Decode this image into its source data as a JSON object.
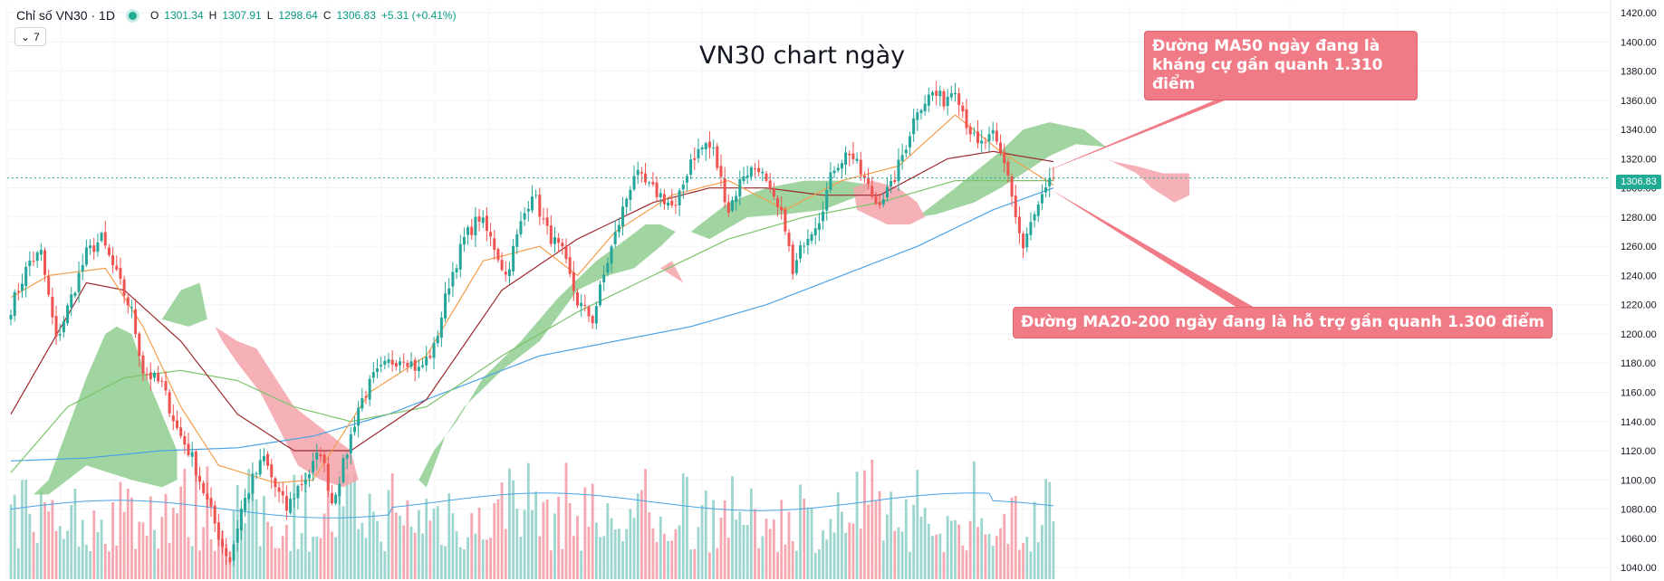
{
  "header": {
    "symbol": "Chỉ số VN30 · 1D",
    "open_label": "O",
    "open": "1301.34",
    "high_label": "H",
    "high": "1307.91",
    "low_label": "L",
    "low": "1298.64",
    "close_label": "C",
    "close": "1306.83",
    "change": "+5.31 (+0.41%)",
    "collapse_count": "7"
  },
  "price_tag": "1306.83",
  "colors": {
    "up": "#26a69a",
    "down": "#ef5350",
    "vol_up": "#9dd6cf",
    "vol_down": "#f6a8b0",
    "ma_fast": "#f59e4c",
    "ma_slow": "#9c2a2f",
    "ma_mid": "#7cc46a",
    "ma_long": "#4aa3e6",
    "cloud_bull": "#8fcd8f",
    "cloud_bear": "#f5a3aa",
    "annotation": "#f07b86"
  },
  "chart_data": {
    "type": "candlestick",
    "title": "VN30 chart ngày",
    "y_ticks": [
      1040,
      1060,
      1080,
      1100,
      1120,
      1140,
      1160,
      1180,
      1200,
      1220,
      1240,
      1260,
      1280,
      1300,
      1320,
      1340,
      1360,
      1380,
      1400,
      1420
    ],
    "ylim": [
      1032,
      1425
    ],
    "last_price": 1306.83,
    "anchors": [
      [
        0,
        1218
      ],
      [
        5,
        1250
      ],
      [
        8,
        1255
      ],
      [
        12,
        1195
      ],
      [
        16,
        1225
      ],
      [
        20,
        1255
      ],
      [
        24,
        1265
      ],
      [
        28,
        1240
      ],
      [
        32,
        1215
      ],
      [
        35,
        1175
      ],
      [
        40,
        1165
      ],
      [
        44,
        1135
      ],
      [
        48,
        1115
      ],
      [
        52,
        1085
      ],
      [
        56,
        1055
      ],
      [
        58,
        1045
      ],
      [
        61,
        1080
      ],
      [
        64,
        1100
      ],
      [
        67,
        1115
      ],
      [
        70,
        1095
      ],
      [
        73,
        1080
      ],
      [
        76,
        1095
      ],
      [
        79,
        1105
      ],
      [
        82,
        1120
      ],
      [
        85,
        1085
      ],
      [
        88,
        1110
      ],
      [
        92,
        1150
      ],
      [
        96,
        1170
      ],
      [
        100,
        1180
      ],
      [
        104,
        1185
      ],
      [
        108,
        1175
      ],
      [
        112,
        1190
      ],
      [
        116,
        1235
      ],
      [
        120,
        1265
      ],
      [
        124,
        1280
      ],
      [
        128,
        1260
      ],
      [
        131,
        1240
      ],
      [
        135,
        1275
      ],
      [
        138,
        1298
      ],
      [
        142,
        1270
      ],
      [
        146,
        1255
      ],
      [
        150,
        1222
      ],
      [
        154,
        1210
      ],
      [
        158,
        1250
      ],
      [
        162,
        1285
      ],
      [
        165,
        1310
      ],
      [
        169,
        1300
      ],
      [
        172,
        1295
      ],
      [
        176,
        1285
      ],
      [
        180,
        1320
      ],
      [
        184,
        1330
      ],
      [
        186,
        1325
      ],
      [
        190,
        1285
      ],
      [
        194,
        1310
      ],
      [
        198,
        1315
      ],
      [
        201,
        1295
      ],
      [
        205,
        1275
      ],
      [
        207,
        1240
      ],
      [
        210,
        1265
      ],
      [
        214,
        1280
      ],
      [
        218,
        1315
      ],
      [
        222,
        1325
      ],
      [
        225,
        1310
      ],
      [
        229,
        1290
      ],
      [
        233,
        1300
      ],
      [
        237,
        1330
      ],
      [
        240,
        1355
      ],
      [
        244,
        1365
      ],
      [
        247,
        1360
      ],
      [
        250,
        1370
      ],
      [
        253,
        1345
      ],
      [
        256,
        1328
      ],
      [
        260,
        1335
      ],
      [
        264,
        1310
      ],
      [
        266,
        1280
      ],
      [
        268,
        1258
      ],
      [
        270,
        1275
      ],
      [
        273,
        1292
      ],
      [
        276,
        1306.83
      ]
    ],
    "volume": {
      "start": 1085,
      "min": 1050,
      "max": 1120,
      "avg_level": 1080
    },
    "ma_fast": [
      [
        0,
        1225
      ],
      [
        10,
        1240
      ],
      [
        25,
        1245
      ],
      [
        35,
        1205
      ],
      [
        45,
        1150
      ],
      [
        55,
        1110
      ],
      [
        70,
        1098
      ],
      [
        80,
        1100
      ],
      [
        95,
        1160
      ],
      [
        110,
        1185
      ],
      [
        125,
        1250
      ],
      [
        140,
        1260
      ],
      [
        150,
        1240
      ],
      [
        160,
        1270
      ],
      [
        175,
        1295
      ],
      [
        190,
        1305
      ],
      [
        205,
        1285
      ],
      [
        220,
        1305
      ],
      [
        235,
        1315
      ],
      [
        250,
        1350
      ],
      [
        262,
        1325
      ],
      [
        276,
        1302
      ]
    ],
    "ma_slow": [
      [
        0,
        1145
      ],
      [
        20,
        1235
      ],
      [
        30,
        1230
      ],
      [
        45,
        1195
      ],
      [
        60,
        1145
      ],
      [
        75,
        1120
      ],
      [
        90,
        1120
      ],
      [
        110,
        1155
      ],
      [
        130,
        1230
      ],
      [
        150,
        1265
      ],
      [
        170,
        1290
      ],
      [
        185,
        1300
      ],
      [
        200,
        1300
      ],
      [
        215,
        1295
      ],
      [
        230,
        1295
      ],
      [
        248,
        1320
      ],
      [
        260,
        1325
      ],
      [
        276,
        1318
      ]
    ],
    "ma_mid": [
      [
        0,
        1105
      ],
      [
        15,
        1150
      ],
      [
        30,
        1170
      ],
      [
        45,
        1175
      ],
      [
        60,
        1168
      ],
      [
        75,
        1150
      ],
      [
        90,
        1140
      ],
      [
        110,
        1150
      ],
      [
        130,
        1185
      ],
      [
        150,
        1215
      ],
      [
        170,
        1240
      ],
      [
        190,
        1265
      ],
      [
        210,
        1280
      ],
      [
        230,
        1290
      ],
      [
        250,
        1305
      ],
      [
        276,
        1305
      ]
    ],
    "ma_long": [
      [
        0,
        1113
      ],
      [
        20,
        1115
      ],
      [
        40,
        1120
      ],
      [
        60,
        1122
      ],
      [
        80,
        1130
      ],
      [
        100,
        1145
      ],
      [
        120,
        1165
      ],
      [
        140,
        1185
      ],
      [
        160,
        1195
      ],
      [
        180,
        1205
      ],
      [
        200,
        1220
      ],
      [
        220,
        1240
      ],
      [
        240,
        1260
      ],
      [
        260,
        1285
      ],
      [
        276,
        1300
      ]
    ],
    "cloud_bull": [
      [
        [
          6,
          1090
        ],
        [
          10,
          1100
        ],
        [
          20,
          1170
        ],
        [
          25,
          1200
        ],
        [
          28,
          1205
        ],
        [
          32,
          1200
        ],
        [
          36,
          1170
        ],
        [
          40,
          1145
        ],
        [
          44,
          1120
        ],
        [
          44,
          1100
        ],
        [
          40,
          1095
        ],
        [
          32,
          1100
        ],
        [
          20,
          1110
        ],
        [
          10,
          1090
        ]
      ],
      [
        [
          40,
          1210
        ],
        [
          45,
          1230
        ],
        [
          50,
          1235
        ],
        [
          52,
          1210
        ],
        [
          47,
          1205
        ]
      ],
      [
        [
          108,
          1100
        ],
        [
          112,
          1120
        ],
        [
          118,
          1140
        ],
        [
          125,
          1170
        ],
        [
          135,
          1195
        ],
        [
          145,
          1225
        ],
        [
          155,
          1250
        ],
        [
          163,
          1265
        ],
        [
          168,
          1275
        ],
        [
          172,
          1275
        ],
        [
          176,
          1270
        ],
        [
          172,
          1260
        ],
        [
          165,
          1245
        ],
        [
          158,
          1240
        ],
        [
          150,
          1230
        ],
        [
          140,
          1195
        ],
        [
          130,
          1175
        ],
        [
          120,
          1150
        ],
        [
          115,
          1130
        ],
        [
          110,
          1095
        ]
      ],
      [
        [
          180,
          1270
        ],
        [
          190,
          1290
        ],
        [
          200,
          1300
        ],
        [
          210,
          1305
        ],
        [
          220,
          1305
        ],
        [
          228,
          1302
        ],
        [
          225,
          1295
        ],
        [
          215,
          1285
        ],
        [
          205,
          1282
        ],
        [
          195,
          1280
        ],
        [
          185,
          1265
        ]
      ],
      [
        [
          240,
          1280
        ],
        [
          250,
          1300
        ],
        [
          262,
          1325
        ],
        [
          268,
          1340
        ],
        [
          275,
          1345
        ],
        [
          284,
          1340
        ],
        [
          290,
          1328
        ],
        [
          282,
          1330
        ],
        [
          275,
          1322
        ],
        [
          268,
          1310
        ],
        [
          262,
          1300
        ],
        [
          255,
          1290
        ],
        [
          245,
          1282
        ]
      ]
    ],
    "cloud_bear": [
      [
        [
          54,
          1205
        ],
        [
          60,
          1195
        ],
        [
          65,
          1190
        ],
        [
          70,
          1170
        ],
        [
          75,
          1150
        ],
        [
          80,
          1140
        ],
        [
          85,
          1130
        ],
        [
          90,
          1120
        ],
        [
          92,
          1100
        ],
        [
          88,
          1095
        ],
        [
          82,
          1100
        ],
        [
          76,
          1110
        ],
        [
          70,
          1140
        ],
        [
          66,
          1160
        ],
        [
          60,
          1180
        ],
        [
          56,
          1195
        ]
      ],
      [
        [
          172,
          1245
        ],
        [
          175,
          1250
        ],
        [
          178,
          1235
        ]
      ],
      [
        [
          223,
          1300
        ],
        [
          228,
          1305
        ],
        [
          235,
          1300
        ],
        [
          240,
          1290
        ],
        [
          242,
          1280
        ],
        [
          238,
          1275
        ],
        [
          232,
          1275
        ],
        [
          228,
          1280
        ],
        [
          224,
          1285
        ]
      ],
      [
        [
          290,
          1320
        ],
        [
          298,
          1310
        ],
        [
          302,
          1300
        ],
        [
          308,
          1290
        ],
        [
          312,
          1295
        ],
        [
          312,
          1310
        ],
        [
          305,
          1310
        ],
        [
          298,
          1315
        ],
        [
          292,
          1318
        ]
      ]
    ],
    "annotations": [
      {
        "text": "Đường MA50 ngày đang là kháng cự gần quanh 1.310 điểm"
      },
      {
        "text": "Đường MA20-200 ngày đang là hỗ trợ gần quanh 1.300 điểm"
      }
    ]
  }
}
